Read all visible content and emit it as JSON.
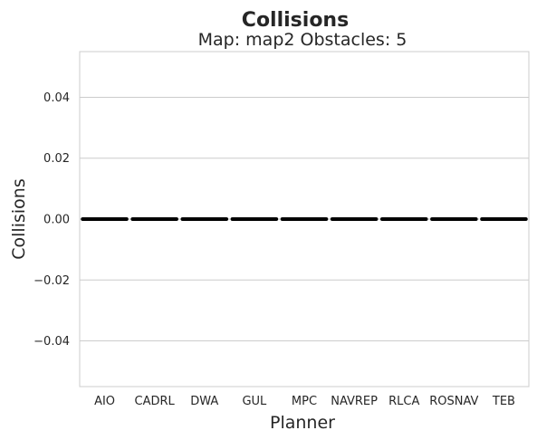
{
  "chart_data": {
    "type": "box",
    "title": "Collisions",
    "subtitle": "Map: map2 Obstacles: 5",
    "xlabel": "Planner",
    "ylabel": "Collisions",
    "categories": [
      "AIO",
      "CADRL",
      "DWA",
      "GUL",
      "MPC",
      "NAVREP",
      "RLCA",
      "ROSNAV",
      "TEB"
    ],
    "values": [
      0,
      0,
      0,
      0,
      0,
      0,
      0,
      0,
      0
    ],
    "ylim": [
      -0.055,
      0.055
    ],
    "yticks": [
      -0.04,
      -0.02,
      0.0,
      0.02,
      0.04
    ],
    "ytick_labels": [
      "−0.04",
      "−0.02",
      "0.00",
      "0.02",
      "0.04"
    ],
    "grid": true,
    "reference_line": 0,
    "colors": {
      "mark": "#000000",
      "grid": "#cccccc",
      "frame": "#cccccc",
      "text": "#262626"
    }
  }
}
